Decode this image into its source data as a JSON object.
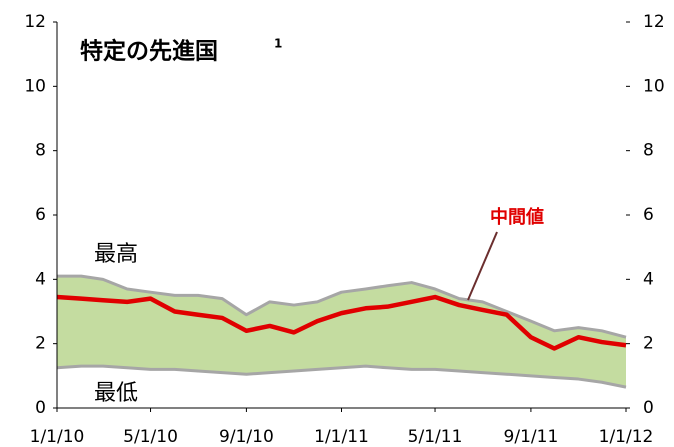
{
  "chart_data": {
    "type": "band-line",
    "title": "特定の先進国",
    "title_note": "1",
    "x": [
      "2010-01-01",
      "2010-02-01",
      "2010-03-01",
      "2010-04-01",
      "2010-05-01",
      "2010-06-01",
      "2010-07-01",
      "2010-08-01",
      "2010-09-01",
      "2010-10-01",
      "2010-11-01",
      "2010-12-01",
      "2011-01-01",
      "2011-02-01",
      "2011-03-01",
      "2011-04-01",
      "2011-05-01",
      "2011-06-01",
      "2011-07-01",
      "2011-08-01",
      "2011-09-01",
      "2011-10-01",
      "2011-11-01",
      "2011-12-01",
      "2012-01-01"
    ],
    "series": [
      {
        "name": "最高",
        "color": "#a6a6a6",
        "values": [
          4.1,
          4.1,
          4.0,
          3.7,
          3.6,
          3.5,
          3.5,
          3.4,
          2.9,
          3.3,
          3.2,
          3.3,
          3.6,
          3.7,
          3.8,
          3.9,
          3.7,
          3.4,
          3.3,
          3.0,
          2.7,
          2.4,
          2.5,
          2.4,
          2.2
        ]
      },
      {
        "name": "最低",
        "color": "#a6a6a6",
        "values": [
          1.25,
          1.3,
          1.3,
          1.25,
          1.2,
          1.2,
          1.15,
          1.1,
          1.05,
          1.1,
          1.15,
          1.2,
          1.25,
          1.3,
          1.25,
          1.2,
          1.2,
          1.15,
          1.1,
          1.05,
          1.0,
          0.95,
          0.9,
          0.8,
          0.65
        ]
      },
      {
        "name": "中間値",
        "color": "#e00000",
        "values": [
          3.45,
          3.4,
          3.35,
          3.3,
          3.4,
          3.0,
          2.9,
          2.8,
          2.4,
          2.55,
          2.35,
          2.7,
          2.95,
          3.1,
          3.15,
          3.3,
          3.45,
          3.2,
          3.05,
          2.9,
          2.2,
          1.85,
          2.2,
          2.05,
          1.95
        ]
      }
    ],
    "band_color": "#c4dca0",
    "xlim": [
      "2010-01-01",
      "2012-01-01"
    ],
    "xticks": [
      {
        "value": "2010-01-01",
        "label": "1/1/10"
      },
      {
        "value": "2010-05-01",
        "label": "5/1/10"
      },
      {
        "value": "2010-09-01",
        "label": "9/1/10"
      },
      {
        "value": "2011-01-01",
        "label": "1/1/11"
      },
      {
        "value": "2011-05-01",
        "label": "5/1/11"
      },
      {
        "value": "2011-09-01",
        "label": "9/1/11"
      },
      {
        "value": "2012-01-01",
        "label": "1/1/12"
      }
    ],
    "ylim": [
      0,
      12
    ],
    "yticks": [
      0,
      2,
      4,
      6,
      8,
      10,
      12
    ],
    "y2lim": [
      0,
      12
    ],
    "y2ticks": [
      0,
      2,
      4,
      6,
      8,
      10,
      12
    ]
  }
}
